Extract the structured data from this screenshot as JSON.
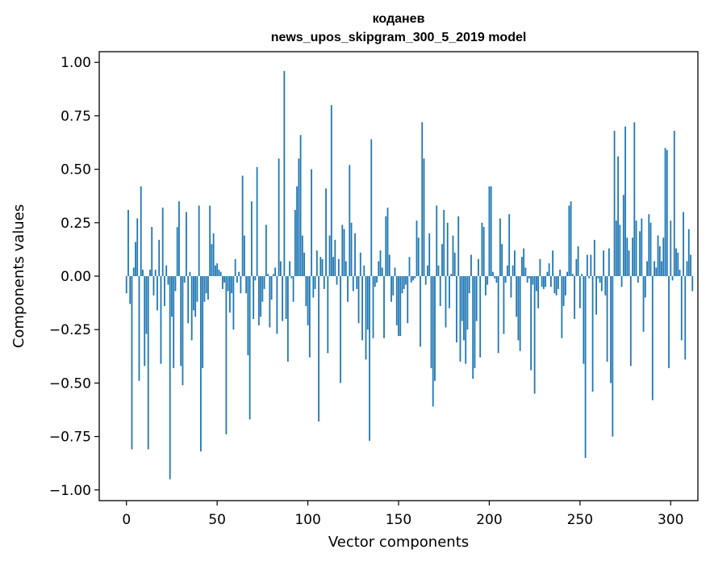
{
  "chart_data": {
    "type": "bar",
    "title": "коданев",
    "subtitle": "news_upos_skipgram_300_5_2019 model",
    "xlabel": "Vector components",
    "ylabel": "Components values",
    "xlim": [
      -15,
      315
    ],
    "ylim": [
      -1.05,
      1.05
    ],
    "xticks": [
      0,
      50,
      100,
      150,
      200,
      250,
      300
    ],
    "xtick_labels": [
      "0",
      "50",
      "100",
      "150",
      "200",
      "250",
      "300"
    ],
    "yticks": [
      1.0,
      0.75,
      0.5,
      0.25,
      0.0,
      -0.25,
      -0.5,
      -0.75,
      -1.0
    ],
    "ytick_labels": [
      "1.00",
      "0.75",
      "0.50",
      "0.25",
      "0.00",
      "−0.25",
      "−0.50",
      "−0.75",
      "−1.00"
    ],
    "bar_color": "#1f77b4",
    "values": [
      -0.08,
      0.31,
      -0.13,
      -0.81,
      0.04,
      0.16,
      0.27,
      -0.49,
      0.42,
      0.03,
      -0.42,
      -0.27,
      -0.81,
      0.03,
      0.23,
      -0.09,
      0.03,
      -0.16,
      0.17,
      -0.41,
      0.32,
      -0.14,
      0.05,
      -0.04,
      -0.95,
      -0.19,
      -0.43,
      -0.07,
      0.23,
      0.35,
      -0.42,
      -0.51,
      -0.03,
      0.3,
      -0.22,
      0.02,
      -0.3,
      -0.16,
      -0.19,
      -0.12,
      0.33,
      -0.82,
      -0.43,
      -0.12,
      -0.08,
      -0.11,
      0.33,
      0.15,
      0.2,
      0.05,
      0.06,
      0.03,
      0.02,
      -0.06,
      -0.03,
      -0.74,
      -0.07,
      -0.17,
      -0.08,
      -0.25,
      0.08,
      -0.03,
      0.02,
      -0.08,
      0.47,
      0.19,
      -0.08,
      -0.37,
      -0.67,
      0.35,
      -0.2,
      -0.02,
      0.51,
      -0.23,
      -0.19,
      -0.12,
      -0.06,
      0.24,
      0.01,
      -0.24,
      -0.11,
      0.01,
      0.04,
      -0.27,
      0.55,
      0.07,
      -0.21,
      0.96,
      -0.2,
      -0.4,
      0.07,
      -0.01,
      -0.12,
      0.31,
      0.42,
      0.55,
      0.66,
      0.19,
      0.11,
      -0.14,
      -0.23,
      -0.38,
      0.5,
      -0.1,
      -0.06,
      0.12,
      -0.68,
      0.09,
      0.08,
      -0.06,
      0.41,
      -0.36,
      0.19,
      0.8,
      0.09,
      0.17,
      -0.04,
      0.08,
      -0.5,
      0.24,
      0.22,
      0.07,
      -0.12,
      0.52,
      0.25,
      -0.07,
      0.2,
      -0.06,
      -0.22,
      0.11,
      -0.3,
      0.05,
      -0.39,
      -0.25,
      -0.77,
      0.64,
      -0.29,
      -0.05,
      -0.03,
      0.07,
      0.12,
      0.04,
      -0.29,
      0.28,
      0.32,
      0.1,
      -0.12,
      -0.09,
      0.04,
      -0.23,
      -0.28,
      -0.28,
      -0.08,
      -0.06,
      -0.04,
      -0.22,
      0.09,
      -0.03,
      -0.02,
      -0.01,
      0.26,
      0.18,
      -0.33,
      0.72,
      0.55,
      -0.04,
      0.05,
      0.2,
      -0.43,
      -0.61,
      -0.49,
      0.33,
      0.05,
      -0.14,
      0.15,
      0.31,
      -0.24,
      0.25,
      -0.15,
      0.01,
      0.19,
      0.11,
      -0.31,
      0.28,
      -0.4,
      -0.21,
      -0.3,
      -0.41,
      -0.25,
      -0.08,
      0.1,
      -0.48,
      -0.43,
      -0.21,
      0.08,
      -0.38,
      0.25,
      0.23,
      -0.09,
      -0.04,
      0.42,
      0.42,
      0.02,
      -0.01,
      -0.03,
      -0.36,
      0.27,
      0.15,
      -0.27,
      -0.03,
      0.05,
      0.29,
      -0.1,
      0.05,
      0.12,
      -0.19,
      -0.3,
      -0.35,
      0.09,
      0.13,
      0.04,
      -0.03,
      -0.01,
      -0.44,
      -0.04,
      -0.55,
      -0.07,
      -0.15,
      0.08,
      -0.05,
      -0.06,
      -0.05,
      0.02,
      0.06,
      -0.05,
      0.12,
      -0.08,
      -0.09,
      -0.06,
      0.03,
      -0.29,
      -0.14,
      -0.09,
      0.02,
      0.33,
      0.35,
      0.01,
      -0.2,
      0.08,
      0.14,
      -0.15,
      0.01,
      -0.41,
      -0.85,
      0.1,
      -0.01,
      0.1,
      -0.54,
      0.17,
      -0.18,
      -0.01,
      -0.03,
      -0.07,
      0.12,
      -0.09,
      -0.4,
      0.13,
      -0.5,
      -0.75,
      0.68,
      0.26,
      0.56,
      0.24,
      -0.05,
      0.38,
      0.7,
      0.18,
      0.12,
      -0.42,
      0.18,
      0.72,
      0.26,
      -0.03,
      0.21,
      0.27,
      -0.26,
      -0.1,
      0.07,
      0.29,
      0.25,
      -0.58,
      0.07,
      0.04,
      0.19,
      0.14,
      0.07,
      0.18,
      0.6,
      0.59,
      -0.43,
      0.26,
      -0.02,
      0.68,
      0.13,
      0.11,
      0.03,
      -0.3,
      0.3,
      -0.39,
      0.07,
      0.22,
      0.1,
      -0.07
    ]
  }
}
